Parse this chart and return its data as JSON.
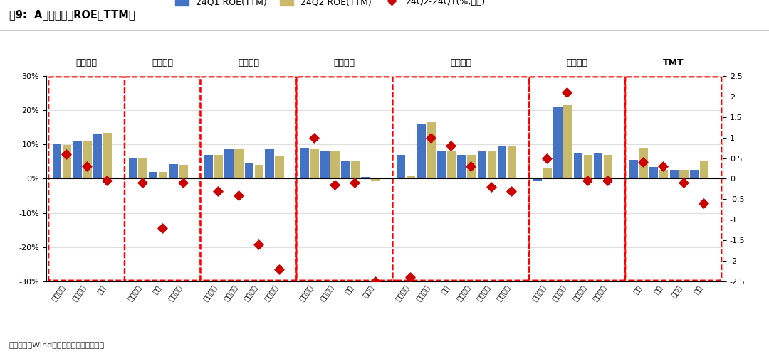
{
  "title": "图9:  A股一级行业ROE（TTM）",
  "footnote": "数据来源：Wind，广发证券发展研究中心",
  "legend_labels": [
    "24Q1 ROE(TTM)",
    "24Q2 ROE(TTM)",
    "24Q2-24Q1(%,右轴)"
  ],
  "bar_color_q1": "#4472C4",
  "bar_color_q2": "#C9B96A",
  "diamond_color": "#CC0000",
  "groups": [
    {
      "name": "上游资源",
      "industries": [
        "有色金属",
        "石油石化",
        "煤炭"
      ],
      "q1": [
        10.0,
        11.0,
        13.0
      ],
      "q2": [
        9.8,
        11.0,
        13.3
      ],
      "diff": [
        0.6,
        0.3,
        -0.05
      ]
    },
    {
      "name": "中游材料",
      "industries": [
        "基础化工",
        "钢铁",
        "建筑材料"
      ],
      "q1": [
        6.2,
        2.0,
        4.2
      ],
      "q2": [
        6.0,
        2.0,
        4.0
      ],
      "diff": [
        -0.1,
        -1.2,
        -0.1
      ]
    },
    {
      "name": "中游制造",
      "industries": [
        "机械设备",
        "建筑装饰",
        "国防军工",
        "电力设备"
      ],
      "q1": [
        7.0,
        8.5,
        4.5,
        8.5
      ],
      "q2": [
        7.0,
        8.5,
        4.0,
        6.5
      ],
      "diff": [
        -0.3,
        -0.4,
        -1.6,
        -2.2
      ]
    },
    {
      "name": "其他周期",
      "industries": [
        "公用事业",
        "交通运输",
        "环保",
        "房地产"
      ],
      "q1": [
        9.0,
        8.0,
        5.0,
        0.5
      ],
      "q2": [
        8.5,
        8.0,
        5.0,
        -0.5
      ],
      "diff": [
        1.0,
        -0.15,
        -0.1,
        -2.5
      ]
    },
    {
      "name": "可选消费",
      "industries": [
        "社会服务",
        "家用电器",
        "汽车",
        "轻工制造",
        "美容护理",
        "商贸零售"
      ],
      "q1": [
        7.0,
        16.0,
        8.0,
        7.0,
        8.0,
        9.5
      ],
      "q2": [
        1.0,
        16.5,
        8.0,
        7.0,
        8.0,
        9.5
      ],
      "diff": [
        -2.4,
        1.0,
        0.8,
        0.3,
        -0.2,
        -0.3
      ]
    },
    {
      "name": "必需消费",
      "industries": [
        "农林牧渔",
        "食品饮料",
        "纺织服饰",
        "医药生物"
      ],
      "q1": [
        -0.5,
        21.0,
        7.5,
        7.5
      ],
      "q2": [
        3.0,
        21.5,
        7.0,
        7.0
      ],
      "diff": [
        0.5,
        2.1,
        -0.05,
        -0.05
      ]
    },
    {
      "name": "TMT",
      "industries": [
        "电子",
        "通信",
        "计算机",
        "传媒"
      ],
      "q1": [
        5.5,
        3.5,
        2.5,
        2.5
      ],
      "q2": [
        9.0,
        2.5,
        2.5,
        5.0
      ],
      "diff": [
        0.4,
        0.3,
        -0.1,
        -0.6
      ]
    }
  ],
  "ylim_left": [
    -30,
    30
  ],
  "ylim_right": [
    -2.5,
    2.5
  ],
  "yticks_left": [
    -30,
    -20,
    -10,
    0,
    10,
    20,
    30
  ],
  "yticks_right": [
    -2.5,
    -2.0,
    -1.5,
    -1.0,
    -0.5,
    0.0,
    0.5,
    1.0,
    1.5,
    2.0,
    2.5
  ],
  "background_color": "#FFFFFF"
}
